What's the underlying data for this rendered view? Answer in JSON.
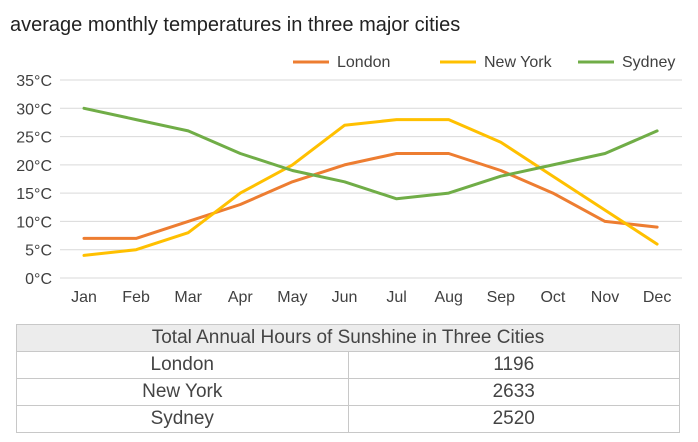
{
  "chart_data": {
    "type": "line",
    "title": "average monthly temperatures in three major cities",
    "categories": [
      "Jan",
      "Feb",
      "Mar",
      "Apr",
      "May",
      "Jun",
      "Jul",
      "Aug",
      "Sep",
      "Oct",
      "Nov",
      "Dec"
    ],
    "y_ticks": [
      "0°C",
      "5°C",
      "10°C",
      "15°C",
      "20°C",
      "25°C",
      "30°C",
      "35°C"
    ],
    "ylim": [
      0,
      35
    ],
    "grid": true,
    "legend_position": "top-right",
    "series": [
      {
        "name": "London",
        "color": "#ed7d31",
        "values": [
          7,
          7,
          10,
          13,
          17,
          20,
          22,
          22,
          19,
          15,
          10,
          9
        ]
      },
      {
        "name": "New York",
        "color": "#ffc000",
        "values": [
          4,
          5,
          8,
          15,
          20,
          27,
          28,
          28,
          24,
          18,
          12,
          6
        ]
      },
      {
        "name": "Sydney",
        "color": "#70ad47",
        "values": [
          30,
          28,
          26,
          22,
          19,
          17,
          14,
          15,
          18,
          20,
          22,
          26
        ]
      }
    ]
  },
  "table": {
    "title": "Total Annual Hours of Sunshine in Three Cities",
    "rows": [
      {
        "city": "London",
        "hours": "1196"
      },
      {
        "city": "New York",
        "hours": "2633"
      },
      {
        "city": "Sydney",
        "hours": "2520"
      }
    ]
  }
}
